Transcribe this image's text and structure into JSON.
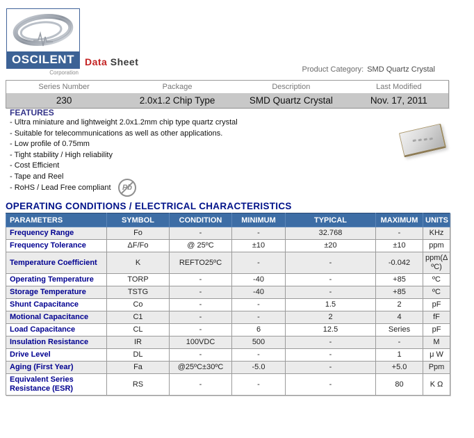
{
  "header": {
    "logo_text": "OSCILENT",
    "logo_sub": "Corporation",
    "doc_title_red": "Data",
    "doc_title_rest": "Sheet",
    "product_category_label": "Product Category:",
    "product_category_value": "SMD Quartz Crystal"
  },
  "info_table": {
    "columns": [
      "Series Number",
      "Package",
      "Description",
      "Last Modified"
    ],
    "row": [
      "230",
      "2.0x1.2 Chip Type",
      "SMD Quartz Crystal",
      "Nov. 17, 2011"
    ]
  },
  "features": {
    "title": "FEATURES",
    "items": [
      "- Ultra miniature and lightweight 2.0x1.2mm chip type quartz crystal",
      "- Suitable for telecommunications as well as other applications.",
      "- Low profile of 0.75mm",
      "- Tight stability / High reliability",
      "- Cost Efficient",
      "- Tape and Reel",
      "- RoHS / Lead Free compliant"
    ]
  },
  "icons": {
    "pb_label": "Pb",
    "pb_meaning": "lead-free-icon",
    "logo_swirl": "oscilloscope-swirl-icon",
    "chip_photo": "smd-crystal-chip-photo"
  },
  "section_title": "OPERATING CONDITIONS / ELECTRICAL CHARACTERISTICS",
  "spec_table": {
    "columns": [
      "PARAMETERS",
      "SYMBOL",
      "CONDITION",
      "MINIMUM",
      "TYPICAL",
      "MAXIMUM",
      "UNITS"
    ],
    "rows": [
      {
        "parameter": "Frequency Range",
        "symbol": "Fo",
        "condition": "-",
        "minimum": "-",
        "typical": "32.768",
        "maximum": "-",
        "units": "KHz"
      },
      {
        "parameter": "Frequency Tolerance",
        "symbol": "ΔF/Fo",
        "condition": "@ 25ºC",
        "minimum": "±10",
        "typical": "±20",
        "maximum": "±10",
        "units": "ppm"
      },
      {
        "parameter": "Temperature Coefficient",
        "symbol": "K",
        "condition": "REFTO25ºC",
        "minimum": "-",
        "typical": "-",
        "maximum": "-0.042",
        "units": "ppm(Δ ºC)"
      },
      {
        "parameter": "Operating Temperature",
        "symbol": "TORP",
        "condition": "-",
        "minimum": "-40",
        "typical": "-",
        "maximum": "+85",
        "units": "ºC"
      },
      {
        "parameter": "Storage Temperature",
        "symbol": "TSTG",
        "condition": "-",
        "minimum": "-40",
        "typical": "-",
        "maximum": "+85",
        "units": "ºC"
      },
      {
        "parameter": "Shunt Capacitance",
        "symbol": "Co",
        "condition": "-",
        "minimum": "-",
        "typical": "1.5",
        "maximum": "2",
        "units": "pF"
      },
      {
        "parameter": "Motional Capacitance",
        "symbol": "C1",
        "condition": "-",
        "minimum": "-",
        "typical": "2",
        "maximum": "4",
        "units": "fF"
      },
      {
        "parameter": "Load Capacitance",
        "symbol": "CL",
        "condition": "-",
        "minimum": "6",
        "typical": "12.5",
        "maximum": "Series",
        "units": "pF"
      },
      {
        "parameter": "Insulation Resistance",
        "symbol": "IR",
        "condition": "100VDC",
        "minimum": "500",
        "typical": "-",
        "maximum": "-",
        "units": "M"
      },
      {
        "parameter": "Drive Level",
        "symbol": "DL",
        "condition": "-",
        "minimum": "-",
        "typical": "-",
        "maximum": "1",
        "units": "μ W"
      },
      {
        "parameter": "Aging (First Year)",
        "symbol": "Fa",
        "condition": "@25ºC±30ºC",
        "minimum": "-5.0",
        "typical": "-",
        "maximum": "+5.0",
        "units": "Ppm"
      },
      {
        "parameter": "Equivalent Series Resistance (ESR)",
        "symbol": "RS",
        "condition": "-",
        "minimum": "-",
        "typical": "-",
        "maximum": "80",
        "units": "K Ω"
      }
    ]
  },
  "colors": {
    "brand_blue": "#3c6295",
    "table_header_blue": "#3d6da5",
    "navy_text": "#000090",
    "section_title_navy": "#001289",
    "features_blue": "#333388",
    "data_red": "#c32222",
    "silver_row": "#c8c8c8",
    "stripe_gray": "#ebebeb"
  }
}
